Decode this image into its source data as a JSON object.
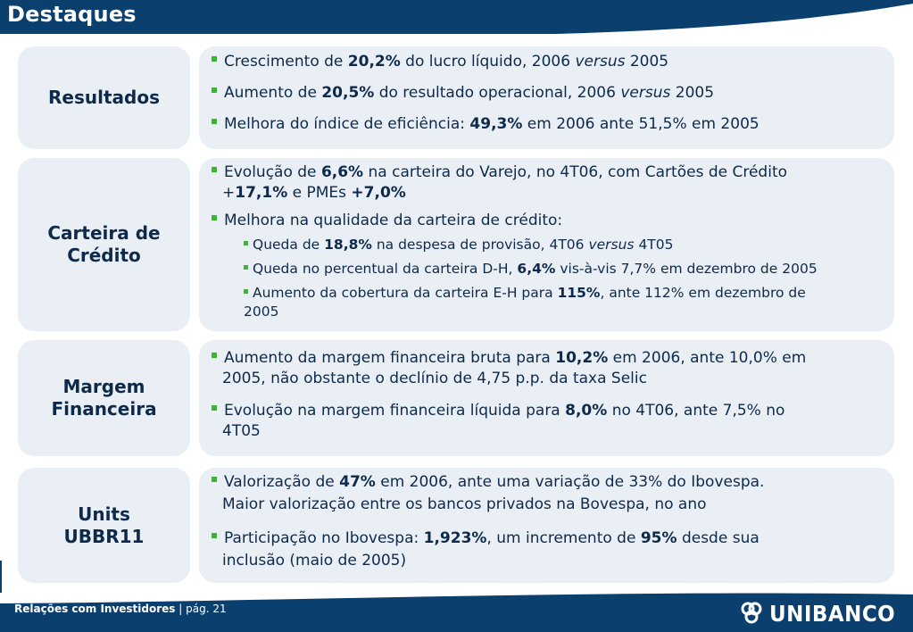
{
  "title": "Destaques",
  "footer": {
    "section": "Relações com Investidores",
    "separator": "|",
    "page": "pág. 21"
  },
  "logo": {
    "text": "UNIBANCO"
  },
  "colors": {
    "navy": "#0b3f6d",
    "bullet": "#3cb532",
    "box": "#e9eff5"
  },
  "sections": {
    "resultados": {
      "label": "Resultados",
      "b1": {
        "t1": "Crescimento de ",
        "b": "20,2%",
        "t2": " do lucro líquido, 2006 ",
        "i": "versus",
        "t3": " 2005"
      },
      "b2": {
        "t1": "Aumento de ",
        "b": "20,5%",
        "t2": " do resultado operacional, 2006 ",
        "i": "versus",
        "t3": " 2005"
      },
      "b3": {
        "t1": "Melhora do índice de eficiência: ",
        "b": "49,3%",
        "t2": " em 2006 ante 51,5% em 2005"
      }
    },
    "carteira": {
      "label1": "Carteira de",
      "label2": "Crédito",
      "b1": {
        "t1": "Evolução de ",
        "b1": "6,6%",
        "t2": " na carteira do Varejo, no 4T06, com Cartões de Crédito",
        "t3": "+",
        "b2": "17,1%",
        "t4": " e PMEs ",
        "b3": "+7,0%"
      },
      "b2": {
        "t1": "Melhora na qualidade da carteira de crédito:"
      },
      "s1": {
        "t1": "Queda de ",
        "b": "18,8%",
        "t2": " na despesa de provisão, 4T06 ",
        "i": "versus",
        "t3": " 4T05"
      },
      "s2": {
        "t1": "Queda no percentual da carteira D-H, ",
        "b": "6,4%",
        "t2": " vis-à-vis 7,7% em dezembro de 2005"
      },
      "s3": {
        "t1": "Aumento da cobertura da carteira E-H para ",
        "b": "115%",
        "t2": ", ante 112% em dezembro de",
        "t3": "2005"
      }
    },
    "margem": {
      "label1": "Margem",
      "label2": "Financeira",
      "b1": {
        "t1": "Aumento da margem financeira bruta para ",
        "b": "10,2%",
        "t2": " em 2006, ante 10,0% em",
        "t3": "2005, não obstante o declínio de 4,75 p.p. da taxa Selic"
      },
      "b2": {
        "t1": "Evolução na margem financeira líquida para ",
        "b": "8,0%",
        "t2": " no 4T06, ante 7,5% no",
        "t3": "4T05"
      }
    },
    "units": {
      "label1": "Units",
      "label2": "UBBR11",
      "b1": {
        "t1": "Valorização de ",
        "b": "47%",
        "t2": " em 2006, ante uma variação de 33% do Ibovespa.",
        "t3": "Maior valorização entre os bancos privados na Bovespa, no ano"
      },
      "b2": {
        "t1": "Participação no Ibovespa: ",
        "b1": "1,923%",
        "t2": ", um incremento de ",
        "b2": "95%",
        "t3": " desde sua",
        "t4": "inclusão (maio de 2005)"
      }
    }
  }
}
